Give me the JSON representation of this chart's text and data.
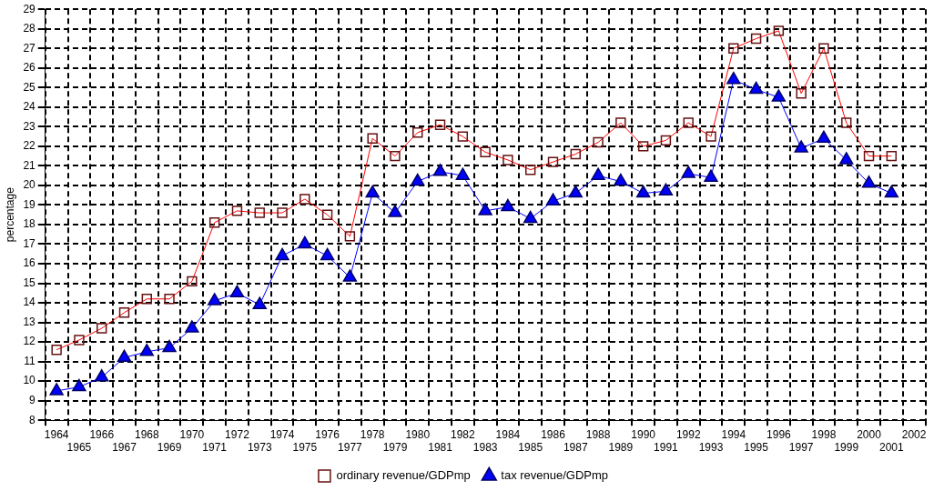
{
  "chart_data": {
    "type": "line",
    "ylabel": "percentage",
    "categories": [
      "1964",
      "1965",
      "1966",
      "1967",
      "1968",
      "1969",
      "1970",
      "1971",
      "1972",
      "1973",
      "1974",
      "1975",
      "1976",
      "1977",
      "1978",
      "1979",
      "1980",
      "1981",
      "1982",
      "1983",
      "1984",
      "1985",
      "1986",
      "1987",
      "1988",
      "1989",
      "1990",
      "1991",
      "1992",
      "1993",
      "1994",
      "1995",
      "1996",
      "1997",
      "1998",
      "1999",
      "2000",
      "2001",
      "2002"
    ],
    "series": [
      {
        "name": "ordinary revenue/GDPmp",
        "color": "#ff0000",
        "marker": "square",
        "values": [
          11.6,
          12.1,
          12.7,
          13.5,
          14.2,
          14.2,
          15.1,
          18.1,
          18.7,
          18.6,
          18.6,
          19.3,
          18.5,
          17.4,
          22.4,
          21.5,
          22.7,
          23.1,
          22.5,
          21.7,
          21.3,
          20.8,
          21.2,
          21.6,
          22.2,
          23.2,
          22.0,
          22.3,
          23.2,
          22.5,
          27.0,
          27.5,
          27.9,
          24.7,
          27.0,
          23.2,
          21.5,
          21.5,
          null
        ]
      },
      {
        "name": "tax revenue/GDPmp",
        "color": "#0000ff",
        "marker": "triangle",
        "values": [
          9.5,
          9.7,
          10.2,
          11.2,
          11.5,
          11.7,
          12.7,
          14.1,
          14.5,
          13.9,
          16.4,
          17.0,
          16.4,
          15.3,
          19.6,
          18.6,
          20.2,
          20.7,
          20.5,
          18.7,
          18.9,
          18.3,
          19.2,
          19.6,
          20.5,
          20.2,
          19.6,
          19.7,
          20.6,
          20.4,
          25.4,
          24.9,
          24.5,
          21.9,
          22.4,
          21.3,
          20.1,
          19.6,
          null
        ]
      }
    ],
    "ylim": [
      8,
      29
    ],
    "yticks": [
      8,
      9,
      10,
      11,
      12,
      13,
      14,
      15,
      16,
      17,
      18,
      19,
      20,
      21,
      22,
      23,
      24,
      25,
      26,
      27,
      28,
      29
    ],
    "grid": true,
    "legend": "bottom",
    "line_style": "solid"
  }
}
